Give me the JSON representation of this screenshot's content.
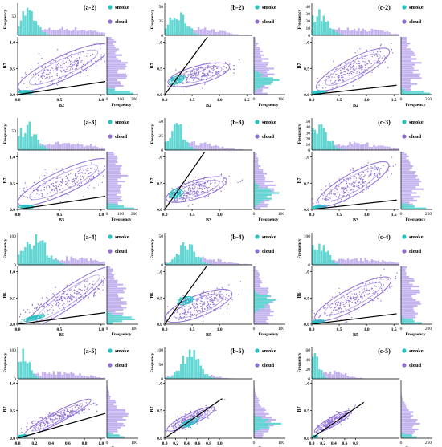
{
  "legend": {
    "smoke": "smoke",
    "cloud": "cloud",
    "smoke_color": "#27c2c2",
    "cloud_color": "#8f6fd6"
  },
  "freq_label": "Frequency",
  "chart_data": [
    {
      "id": "(a-2)",
      "type": "scatter",
      "xlabel": "B2",
      "ylabel": "B7",
      "xticks": [
        "0.0",
        "0.5",
        "1.0"
      ],
      "yticks": [
        "0.0",
        "0.5",
        "1.0"
      ],
      "topticks": [
        "50"
      ],
      "rightticks": [
        "0",
        "100",
        "200"
      ],
      "cloud": {
        "cx": 0.55,
        "cy": 0.52,
        "rx": 0.6,
        "ry": 0.22,
        "angle": 25,
        "x_range": [
          0.15,
          1.05
        ],
        "y_range": [
          0.1,
          1.0
        ]
      },
      "smoke": {
        "cx": 0.1,
        "cy": 0.05,
        "rx": 0.09,
        "ry": 0.03,
        "angle": 0
      },
      "line": [
        [
          0,
          0
        ],
        [
          1.05,
          0.25
        ]
      ]
    },
    {
      "id": "(b-2)",
      "type": "scatter",
      "xlabel": "B2",
      "ylabel": "B7",
      "xticks": [
        "0.0",
        "0.5",
        "1.0",
        "1.5"
      ],
      "yticks": [
        "0.0",
        "0.5",
        "1.0"
      ],
      "topticks": [
        "0",
        "25",
        "50"
      ],
      "rightticks": [
        "0",
        "100"
      ],
      "cloud": {
        "cx": 0.62,
        "cy": 0.38,
        "rx": 0.58,
        "ry": 0.17,
        "angle": 15,
        "x_range": [
          0.2,
          1.2
        ],
        "y_range": [
          0.1,
          0.7
        ]
      },
      "smoke": {
        "cx": 0.22,
        "cy": 0.28,
        "rx": 0.14,
        "ry": 0.07,
        "angle": 20
      },
      "line": [
        [
          0,
          0
        ],
        [
          0.85,
          1.2
        ]
      ]
    },
    {
      "id": "(c-2)",
      "type": "scatter",
      "xlabel": "B2",
      "ylabel": "B7",
      "xticks": [
        "0.0",
        "0.5",
        "1.0",
        "1.5"
      ],
      "yticks": [
        "0.0",
        "0.5",
        "1.0"
      ],
      "topticks": [
        "0",
        "10",
        "20",
        "30",
        "40"
      ],
      "rightticks": [
        "0",
        "250"
      ],
      "cloud": {
        "cx": 0.75,
        "cy": 0.48,
        "rx": 0.75,
        "ry": 0.2,
        "angle": 28,
        "x_range": [
          0.2,
          1.4
        ],
        "y_range": [
          0.1,
          1.0
        ]
      },
      "smoke": {
        "cx": 0.12,
        "cy": 0.04,
        "rx": 0.14,
        "ry": 0.03,
        "angle": 5
      },
      "line": [
        [
          0,
          0
        ],
        [
          1.55,
          0.18
        ]
      ]
    },
    {
      "id": "(a-3)",
      "type": "scatter",
      "xlabel": "B3",
      "ylabel": "B7",
      "xticks": [
        "0.0",
        "0.5",
        "1.0"
      ],
      "yticks": [
        "0.0",
        "0.5",
        "1.0"
      ],
      "topticks": [
        "50"
      ],
      "rightticks": [
        "0",
        "100",
        "200"
      ],
      "cloud": {
        "cx": 0.55,
        "cy": 0.52,
        "rx": 0.6,
        "ry": 0.22,
        "angle": 25,
        "x_range": [
          0.15,
          1.05
        ],
        "y_range": [
          0.1,
          1.0
        ]
      },
      "smoke": {
        "cx": 0.1,
        "cy": 0.05,
        "rx": 0.09,
        "ry": 0.03,
        "angle": 0
      },
      "line": [
        [
          0,
          0
        ],
        [
          1.05,
          0.25
        ]
      ]
    },
    {
      "id": "(b-3)",
      "type": "scatter",
      "xlabel": "B3",
      "ylabel": "B7",
      "xticks": [
        "0.0",
        "0.5",
        "1.0"
      ],
      "yticks": [
        "0.0",
        "0.5",
        "1.0"
      ],
      "topticks": [
        "0",
        "25",
        "50"
      ],
      "rightticks": [
        "0",
        "100"
      ],
      "cloud": {
        "cx": 0.58,
        "cy": 0.38,
        "rx": 0.58,
        "ry": 0.17,
        "angle": 18,
        "x_range": [
          0.2,
          1.2
        ],
        "y_range": [
          0.1,
          0.7
        ]
      },
      "smoke": {
        "cx": 0.2,
        "cy": 0.3,
        "rx": 0.12,
        "ry": 0.08,
        "angle": 20
      },
      "line": [
        [
          0,
          0
        ],
        [
          0.8,
          1.2
        ]
      ]
    },
    {
      "id": "(c-3)",
      "type": "scatter",
      "xlabel": "B3",
      "ylabel": "B7",
      "xticks": [
        "0.0",
        "0.5",
        "1.0",
        "1.5"
      ],
      "yticks": [
        "0.0",
        "0.5",
        "1.0"
      ],
      "topticks": [
        "0",
        "10",
        "20",
        "30",
        "40",
        "50"
      ],
      "rightticks": [
        "0",
        "250"
      ],
      "cloud": {
        "cx": 0.75,
        "cy": 0.48,
        "rx": 0.75,
        "ry": 0.2,
        "angle": 30,
        "x_range": [
          0.2,
          1.4
        ],
        "y_range": [
          0.1,
          1.0
        ]
      },
      "smoke": {
        "cx": 0.12,
        "cy": 0.04,
        "rx": 0.14,
        "ry": 0.03,
        "angle": 5
      },
      "line": [
        [
          0,
          0
        ],
        [
          1.55,
          0.18
        ]
      ]
    },
    {
      "id": "(a-4)",
      "type": "scatter",
      "xlabel": "B5",
      "ylabel": "B6",
      "xticks": [
        "0.0",
        "0.5",
        "1.0"
      ],
      "yticks": [
        "0.0",
        "0.5",
        "1.0"
      ],
      "topticks": [
        "0",
        "100"
      ],
      "rightticks": [
        "0",
        "100"
      ],
      "cloud": {
        "cx": 0.6,
        "cy": 0.5,
        "rx": 0.62,
        "ry": 0.18,
        "angle": 35,
        "x_range": [
          0.15,
          1.05
        ],
        "y_range": [
          0.1,
          1.0
        ]
      },
      "smoke": {
        "cx": 0.2,
        "cy": 0.12,
        "rx": 0.13,
        "ry": 0.04,
        "angle": 15
      },
      "line": [
        [
          0,
          0
        ],
        [
          1.05,
          0.22
        ]
      ]
    },
    {
      "id": "(b-4)",
      "type": "scatter",
      "xlabel": "B5",
      "ylabel": "B6",
      "xticks": [
        "0.0",
        "0.5",
        "1.0"
      ],
      "yticks": [
        "0.0",
        "0.5",
        "1.0"
      ],
      "topticks": [
        "0",
        "50"
      ],
      "rightticks": [
        "0",
        "100"
      ],
      "cloud": {
        "cx": 0.62,
        "cy": 0.35,
        "rx": 0.65,
        "ry": 0.2,
        "angle": 22,
        "x_range": [
          0.2,
          1.2
        ],
        "y_range": [
          0.0,
          0.8
        ]
      },
      "smoke": {
        "cx": 0.38,
        "cy": 0.45,
        "rx": 0.14,
        "ry": 0.07,
        "angle": 15
      },
      "line": [
        [
          0,
          0
        ],
        [
          0.9,
          1.3
        ]
      ]
    },
    {
      "id": "(c-4)",
      "type": "scatter",
      "xlabel": "B5",
      "ylabel": "B6",
      "xticks": [
        "0.0",
        "0.5",
        "1.0",
        "1.5"
      ],
      "yticks": [
        "0.0",
        "0.5",
        "1.0"
      ],
      "topticks": [
        "0",
        "100"
      ],
      "rightticks": [
        "0",
        "200"
      ],
      "cloud": {
        "cx": 0.75,
        "cy": 0.48,
        "rx": 0.78,
        "ry": 0.2,
        "angle": 28,
        "x_range": [
          0.2,
          1.4
        ],
        "y_range": [
          0.1,
          1.0
        ]
      },
      "smoke": {
        "cx": 0.12,
        "cy": 0.05,
        "rx": 0.12,
        "ry": 0.03,
        "angle": 5
      },
      "line": [
        [
          0,
          0
        ],
        [
          1.55,
          0.2
        ]
      ]
    },
    {
      "id": "(a-5)",
      "type": "scatter",
      "xlabel": "B6",
      "ylabel": "B7",
      "xticks": [
        "0.0",
        "0.2",
        "0.4",
        "0.6",
        "0.8",
        "1.0"
      ],
      "yticks": [
        "0.0",
        "0.5",
        "1.0"
      ],
      "topticks": [
        "0",
        "100"
      ],
      "rightticks": [
        "0",
        "100"
      ],
      "cloud": {
        "cx": 0.48,
        "cy": 0.38,
        "rx": 0.45,
        "ry": 0.1,
        "angle": 28,
        "x_range": [
          0.05,
          0.95
        ],
        "y_range": [
          0.0,
          0.8
        ]
      },
      "smoke": {
        "cx": 0.06,
        "cy": 0.04,
        "rx": 0.06,
        "ry": 0.02,
        "angle": 5
      },
      "line": [
        [
          0,
          0
        ],
        [
          1.05,
          0.45
        ]
      ]
    },
    {
      "id": "(b-5)",
      "type": "scatter",
      "xlabel": "B6",
      "ylabel": "B7",
      "xticks": [
        "0.0",
        "0.2",
        "0.4",
        "0.6",
        "0.8",
        "1.0"
      ],
      "yticks": [
        "0.0",
        "0.5",
        "1.0"
      ],
      "topticks": [
        "0",
        "50",
        "100"
      ],
      "rightticks": [
        "0",
        "100"
      ],
      "cloud": {
        "cx": 0.48,
        "cy": 0.35,
        "rx": 0.48,
        "ry": 0.1,
        "angle": 25,
        "x_range": [
          0.05,
          1.0
        ],
        "y_range": [
          0.0,
          0.8
        ]
      },
      "smoke": {
        "cx": 0.45,
        "cy": 0.28,
        "rx": 0.16,
        "ry": 0.05,
        "angle": 22
      },
      "line": [
        [
          0,
          0
        ],
        [
          1.05,
          0.72
        ]
      ]
    },
    {
      "id": "(c-5)",
      "type": "scatter",
      "xlabel": "B6",
      "ylabel": "B7",
      "xticks": [
        "0.0",
        "0.2",
        "0.4",
        "0.6",
        "0.8"
      ],
      "yticks": [
        "0.0",
        "0.5",
        "1.0"
      ],
      "topticks": [
        "0",
        "20",
        "40",
        "60"
      ],
      "rightticks": [
        "0",
        "250"
      ],
      "cloud": {
        "cx": 0.38,
        "cy": 0.3,
        "rx": 0.38,
        "ry": 0.08,
        "angle": 30,
        "x_range": [
          0.05,
          0.75
        ],
        "y_range": [
          0.0,
          0.7
        ]
      },
      "smoke": {
        "cx": 0.05,
        "cy": 0.03,
        "rx": 0.05,
        "ry": 0.02,
        "angle": 5
      },
      "line": [
        [
          0,
          0
        ],
        [
          0.95,
          0.65
        ]
      ]
    }
  ]
}
